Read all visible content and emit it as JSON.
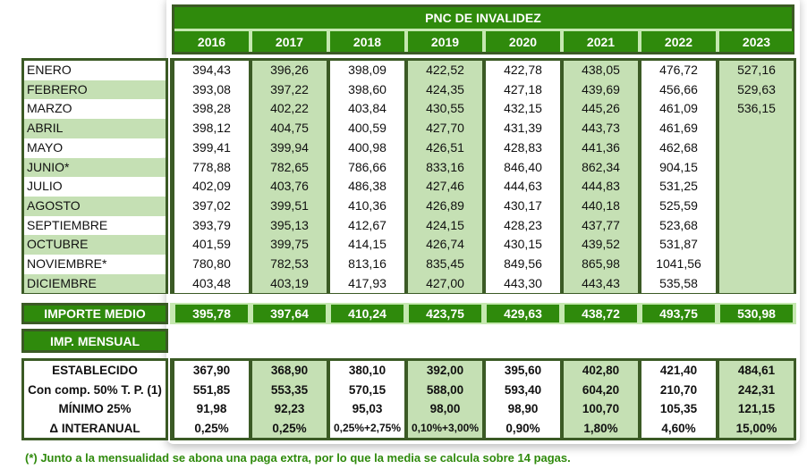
{
  "title": "PNC DE INVALIDEZ",
  "years": [
    "2016",
    "2017",
    "2018",
    "2019",
    "2020",
    "2021",
    "2022",
    "2023"
  ],
  "months": [
    "ENERO",
    "FEBRERO",
    "MARZO",
    "ABRIL",
    "MAYO",
    "JUNIO*",
    "JULIO",
    "AGOSTO",
    "SEPTIEMBRE",
    "OCTUBRE",
    "NOVIEMBRE*",
    "DICIEMBRE"
  ],
  "monthly_values": [
    [
      "394,43",
      "393,08",
      "398,28",
      "398,12",
      "399,41",
      "778,88",
      "402,09",
      "397,02",
      "393,79",
      "401,59",
      "780,80",
      "403,48"
    ],
    [
      "396,26",
      "397,22",
      "402,22",
      "404,75",
      "399,94",
      "782,65",
      "403,76",
      "399,51",
      "395,13",
      "399,75",
      "782,53",
      "403,19"
    ],
    [
      "398,09",
      "398,60",
      "403,84",
      "400,59",
      "400,98",
      "786,66",
      "486,38",
      "410,36",
      "412,67",
      "414,15",
      "813,16",
      "417,93"
    ],
    [
      "422,52",
      "424,35",
      "430,55",
      "427,70",
      "426,51",
      "833,16",
      "427,46",
      "426,89",
      "424,15",
      "426,74",
      "835,45",
      "427,00"
    ],
    [
      "422,78",
      "427,18",
      "432,15",
      "431,39",
      "428,83",
      "846,40",
      "444,63",
      "430,17",
      "428,23",
      "430,15",
      "849,56",
      "443,30"
    ],
    [
      "438,05",
      "439,69",
      "445,26",
      "443,73",
      "441,36",
      "862,34",
      "444,83",
      "440,18",
      "437,77",
      "439,52",
      "865,98",
      "443,43"
    ],
    [
      "476,72",
      "456,66",
      "461,09",
      "461,69",
      "462,68",
      "904,15",
      "531,25",
      "525,59",
      "523,68",
      "531,87",
      "1041,56",
      "535,58"
    ],
    [
      "527,16",
      "529,63",
      "536,15",
      "",
      "",
      "",
      "",
      "",
      "",
      "",
      "",
      ""
    ]
  ],
  "importe_medio": {
    "label": "IMPORTE MEDIO",
    "values": [
      "395,78",
      "397,64",
      "410,24",
      "423,75",
      "429,63",
      "438,72",
      "493,75",
      "530,98"
    ]
  },
  "imp_mensual_label": "IMP. MENSUAL",
  "mensual_rows": [
    {
      "label": "ESTABLECIDO",
      "values": [
        "367,90",
        "368,90",
        "380,10",
        "392,00",
        "395,60",
        "402,80",
        "421,40",
        "484,61"
      ]
    },
    {
      "label": "Con comp. 50% T. P. (1)",
      "values": [
        "551,85",
        "553,35",
        "570,15",
        "588,00",
        "593,40",
        "604,20",
        "210,70",
        "242,31"
      ]
    },
    {
      "label": "MÍNIMO 25%",
      "values": [
        "91,98",
        "92,23",
        "95,03",
        "98,00",
        "98,90",
        "100,70",
        "105,35",
        "121,15"
      ]
    },
    {
      "label": "Δ INTERANUAL",
      "values": [
        "0,25%",
        "0,25%",
        "0,25%+2,75%",
        "0,10%+3,00%",
        "0,90%",
        "1,80%",
        "4,60%",
        "15,00%"
      ]
    }
  ],
  "footnote": "(*) Junto a la mensualidad se abona una paga extra, por lo que la media se calcula sobre 14 pagas.",
  "colors": {
    "header_green": "#2f8a0c",
    "light_green": "#c5e0b4",
    "border": "#3b5a25"
  }
}
